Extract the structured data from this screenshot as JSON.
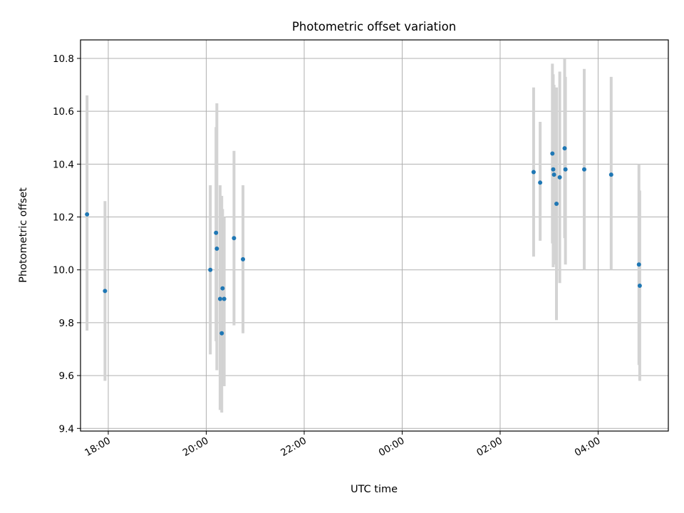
{
  "chart_data": {
    "type": "scatter",
    "title": "Photometric offset variation",
    "xlabel": "UTC time",
    "ylabel": "Photometric offset",
    "x_axis": {
      "kind": "time",
      "min": "17:26",
      "max": "05:26",
      "ticks": [
        "18:00",
        "20:00",
        "22:00",
        "00:00",
        "02:00",
        "04:00"
      ]
    },
    "y_axis": {
      "min": 9.39,
      "max": 10.87,
      "ticks": [
        "9.4",
        "9.6",
        "9.8",
        "10.0",
        "10.2",
        "10.4",
        "10.6",
        "10.8"
      ]
    },
    "grid": true,
    "colors": {
      "point": "#1f77b4",
      "error_bar": "#d3d3d3",
      "grid": "#b0b0b0"
    },
    "series": [
      {
        "points": [
          {
            "time": "17:34",
            "y": 10.21,
            "lo": 9.77,
            "hi": 10.66
          },
          {
            "time": "17:56",
            "y": 9.92,
            "lo": 9.58,
            "hi": 10.26
          },
          {
            "time": "20:05",
            "y": 10.0,
            "lo": 9.68,
            "hi": 10.32
          },
          {
            "time": "20:12",
            "y": 10.14,
            "lo": 9.73,
            "hi": 10.54
          },
          {
            "time": "20:13",
            "y": 10.08,
            "lo": 9.62,
            "hi": 10.63
          },
          {
            "time": "20:17",
            "y": 9.89,
            "lo": 9.47,
            "hi": 10.32
          },
          {
            "time": "20:19",
            "y": 9.76,
            "lo": 9.46,
            "hi": 10.28
          },
          {
            "time": "20:20",
            "y": 9.93,
            "lo": 9.56,
            "hi": 10.23
          },
          {
            "time": "20:22",
            "y": 9.89,
            "lo": 9.56,
            "hi": 10.2
          },
          {
            "time": "20:34",
            "y": 10.12,
            "lo": 9.79,
            "hi": 10.45
          },
          {
            "time": "20:45",
            "y": 10.04,
            "lo": 9.76,
            "hi": 10.32
          },
          {
            "time": "02:41",
            "y": 10.37,
            "lo": 10.05,
            "hi": 10.69
          },
          {
            "time": "02:49",
            "y": 10.33,
            "lo": 10.11,
            "hi": 10.56
          },
          {
            "time": "03:04",
            "y": 10.44,
            "lo": 10.1,
            "hi": 10.78
          },
          {
            "time": "03:05",
            "y": 10.38,
            "lo": 10.01,
            "hi": 10.74
          },
          {
            "time": "03:06",
            "y": 10.36,
            "lo": 10.02,
            "hi": 10.7
          },
          {
            "time": "03:09",
            "y": 10.25,
            "lo": 9.81,
            "hi": 10.69
          },
          {
            "time": "03:13",
            "y": 10.35,
            "lo": 9.95,
            "hi": 10.75
          },
          {
            "time": "03:19",
            "y": 10.46,
            "lo": 10.12,
            "hi": 10.8
          },
          {
            "time": "03:20",
            "y": 10.38,
            "lo": 10.02,
            "hi": 10.73
          },
          {
            "time": "03:43",
            "y": 10.38,
            "lo": 10.0,
            "hi": 10.76
          },
          {
            "time": "04:16",
            "y": 10.36,
            "lo": 10.0,
            "hi": 10.73
          },
          {
            "time": "04:50",
            "y": 10.02,
            "lo": 9.64,
            "hi": 10.4
          },
          {
            "time": "04:51",
            "y": 9.94,
            "lo": 9.58,
            "hi": 10.3
          }
        ]
      }
    ]
  }
}
